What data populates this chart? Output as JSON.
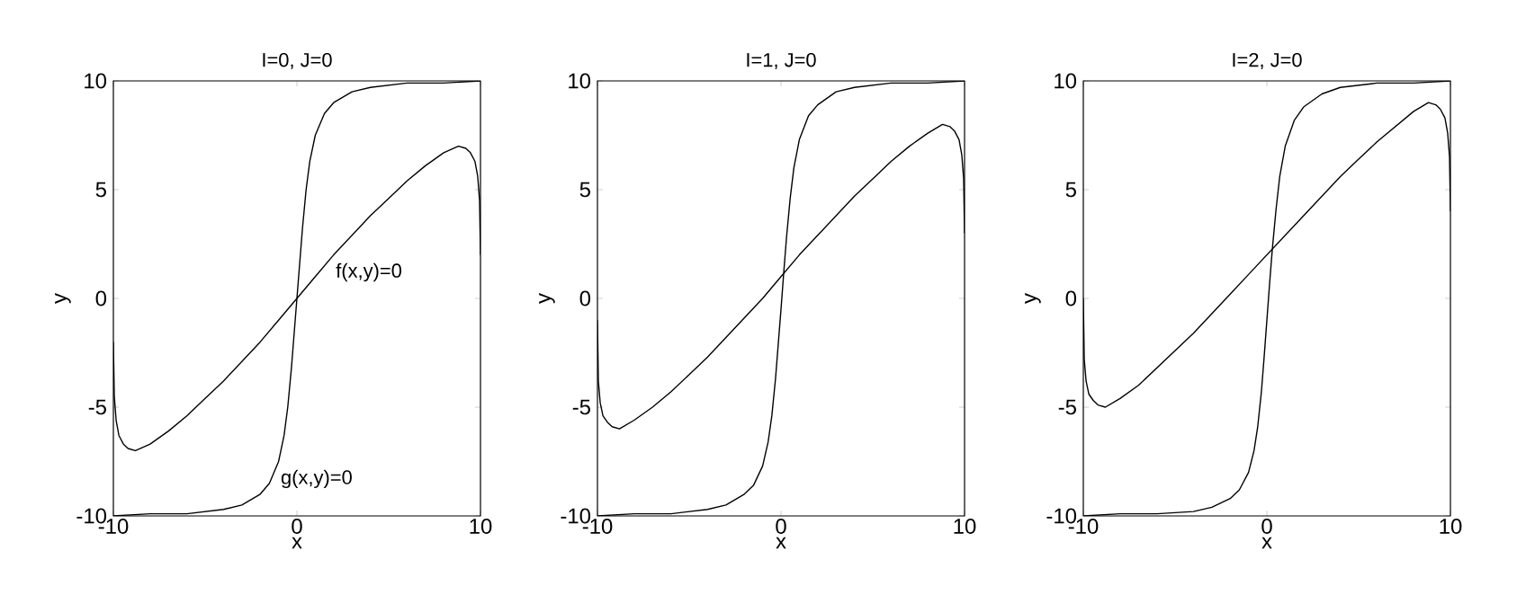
{
  "chart_data": [
    {
      "type": "line",
      "title": "I=0, J=0",
      "xlabel": "x",
      "ylabel": "y",
      "xlim": [
        -10,
        10
      ],
      "ylim": [
        -10,
        10
      ],
      "xticks": [
        -10,
        0,
        10
      ],
      "yticks": [
        -10,
        -5,
        0,
        5,
        10
      ],
      "series": [
        {
          "color": "#000000",
          "x": [
            -10,
            -9.95,
            -9.85,
            -9.7,
            -9.45,
            -9.2,
            -8.8,
            -8,
            -7,
            -6,
            -5,
            -4,
            -3,
            -2,
            -1,
            0,
            1,
            2,
            3,
            4,
            5,
            6,
            7,
            8,
            8.8,
            9.2,
            9.45,
            9.7,
            9.85,
            9.95,
            10
          ],
          "values": [
            -2,
            -4.5,
            -5.6,
            -6.3,
            -6.7,
            -6.9,
            -7,
            -6.7,
            -6.1,
            -5.4,
            -4.6,
            -3.8,
            -2.9,
            -2,
            -1,
            0,
            1,
            2,
            2.9,
            3.8,
            4.6,
            5.4,
            6.1,
            6.7,
            7,
            6.9,
            6.7,
            6.3,
            5.6,
            4.5,
            2
          ]
        },
        {
          "color": "#000000",
          "x": [
            -10,
            -8,
            -6,
            -4,
            -3,
            -2,
            -1.5,
            -1,
            -0.7,
            -0.5,
            -0.3,
            -0.15,
            0,
            0.15,
            0.3,
            0.5,
            0.7,
            1,
            1.5,
            2,
            3,
            4,
            6,
            8,
            10
          ],
          "values": [
            -10,
            -9.9,
            -9.9,
            -9.7,
            -9.5,
            -9,
            -8.5,
            -7.5,
            -6.3,
            -5,
            -3.2,
            -1.6,
            0,
            1.6,
            3.2,
            5,
            6.3,
            7.5,
            8.5,
            9,
            9.5,
            9.7,
            9.9,
            9.9,
            10
          ]
        }
      ],
      "annotations": [
        "f(x,y)=0",
        "g(x,y)=0"
      ]
    },
    {
      "type": "line",
      "title": "I=1, J=0",
      "xlabel": "x",
      "ylabel": "y",
      "xlim": [
        -10,
        10
      ],
      "ylim": [
        -10,
        10
      ],
      "xticks": [
        -10,
        0,
        10
      ],
      "yticks": [
        -10,
        -5,
        0,
        5,
        10
      ],
      "series": [
        {
          "color": "#000000",
          "x": [
            -10,
            -9.95,
            -9.85,
            -9.7,
            -9.45,
            -9.2,
            -8.8,
            -8,
            -7,
            -6,
            -5,
            -4,
            -3,
            -2,
            -1,
            0,
            1,
            2,
            3,
            4,
            5,
            6,
            7,
            8,
            8.8,
            9.2,
            9.45,
            9.7,
            9.85,
            9.95,
            10
          ],
          "values": [
            -1,
            -3.8,
            -4.8,
            -5.4,
            -5.7,
            -5.9,
            -6,
            -5.6,
            -5,
            -4.3,
            -3.5,
            -2.7,
            -1.8,
            -0.9,
            0,
            1,
            2,
            2.9,
            3.8,
            4.7,
            5.5,
            6.3,
            7,
            7.6,
            8,
            7.9,
            7.7,
            7.3,
            6.6,
            5.5,
            3
          ]
        },
        {
          "color": "#000000",
          "x": [
            -10,
            -8,
            -6,
            -4,
            -3,
            -2,
            -1.5,
            -1,
            -0.7,
            -0.5,
            -0.3,
            -0.15,
            0,
            0.15,
            0.3,
            0.5,
            0.7,
            1,
            1.5,
            2,
            3,
            4,
            6,
            8,
            10
          ],
          "values": [
            -10,
            -9.9,
            -9.9,
            -9.7,
            -9.5,
            -9,
            -8.6,
            -7.7,
            -6.6,
            -5.4,
            -3.7,
            -2.1,
            -0.5,
            1.2,
            2.8,
            4.6,
            6,
            7.3,
            8.4,
            8.9,
            9.5,
            9.7,
            9.9,
            9.9,
            10
          ]
        }
      ]
    },
    {
      "type": "line",
      "title": "I=2, J=0",
      "xlabel": "x",
      "ylabel": "y",
      "xlim": [
        -10,
        10
      ],
      "ylim": [
        -10,
        10
      ],
      "xticks": [
        -10,
        0,
        10
      ],
      "yticks": [
        -10,
        -5,
        0,
        5,
        10
      ],
      "series": [
        {
          "color": "#000000",
          "x": [
            -10,
            -9.95,
            -9.85,
            -9.7,
            -9.45,
            -9.2,
            -8.8,
            -8,
            -7,
            -6,
            -5,
            -4,
            -3,
            -2,
            -1,
            0,
            1,
            2,
            3,
            4,
            5,
            6,
            7,
            8,
            8.8,
            9.2,
            9.45,
            9.7,
            9.85,
            9.95,
            10
          ],
          "values": [
            0,
            -2.8,
            -3.8,
            -4.4,
            -4.7,
            -4.9,
            -5,
            -4.6,
            -4,
            -3.2,
            -2.4,
            -1.6,
            -0.7,
            0.2,
            1.1,
            2,
            2.9,
            3.8,
            4.7,
            5.6,
            6.4,
            7.2,
            7.9,
            8.6,
            9,
            8.9,
            8.7,
            8.3,
            7.6,
            6.5,
            4
          ]
        },
        {
          "color": "#000000",
          "x": [
            -10,
            -8,
            -6,
            -4,
            -3,
            -2,
            -1.5,
            -1,
            -0.7,
            -0.5,
            -0.3,
            -0.15,
            0,
            0.15,
            0.3,
            0.5,
            0.7,
            1,
            1.5,
            2,
            3,
            4,
            6,
            8,
            10
          ],
          "values": [
            -10,
            -9.9,
            -9.9,
            -9.8,
            -9.6,
            -9.2,
            -8.8,
            -8,
            -7,
            -5.9,
            -4.3,
            -2.7,
            -1,
            0.7,
            2.3,
            4.1,
            5.6,
            7,
            8.2,
            8.8,
            9.4,
            9.7,
            9.9,
            9.9,
            10
          ]
        }
      ]
    }
  ]
}
